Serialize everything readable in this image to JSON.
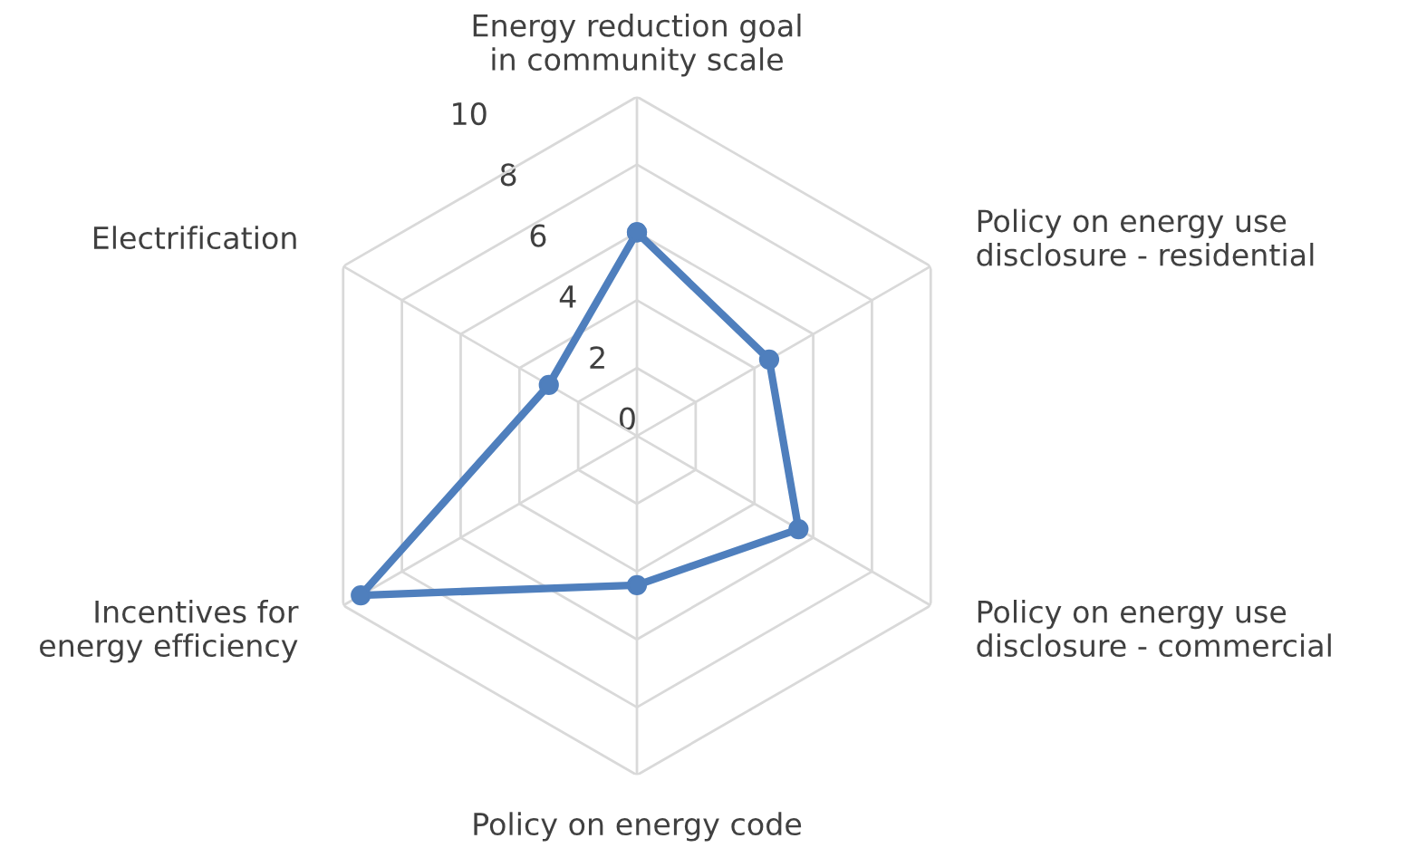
{
  "chart_data": {
    "type": "radar",
    "categories": [
      "Energy reduction goal\nin community scale",
      "Policy on energy use\ndisclosure - residential",
      "Policy on energy use\ndisclosure - commercial",
      "Policy on energy code",
      "Incentives for\nenergy efficiency",
      "Electrification"
    ],
    "series": [
      {
        "color": "#4f7fbd",
        "values": [
          6,
          4.5,
          5.5,
          4.4,
          9.4,
          3.0
        ]
      }
    ],
    "ylim": [
      0,
      10
    ],
    "yticks": [
      0,
      2,
      4,
      6,
      8,
      10
    ],
    "grid": true,
    "marker": "circle",
    "line_style": "solid",
    "legend": false
  }
}
